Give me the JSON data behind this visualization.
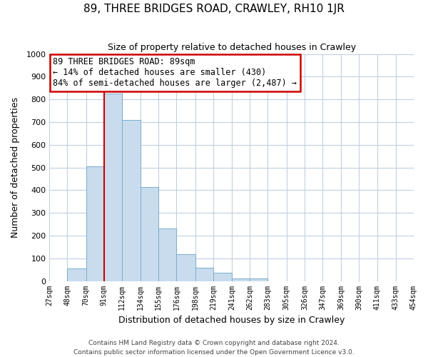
{
  "title": "89, THREE BRIDGES ROAD, CRAWLEY, RH10 1JR",
  "subtitle": "Size of property relative to detached houses in Crawley",
  "xlabel": "Distribution of detached houses by size in Crawley",
  "ylabel": "Number of detached properties",
  "bar_edges": [
    27,
    48,
    70,
    91,
    112,
    134,
    155,
    176,
    198,
    219,
    241,
    262,
    283,
    305,
    326,
    347,
    369,
    390,
    411,
    433,
    454
  ],
  "bar_heights": [
    0,
    55,
    505,
    825,
    710,
    415,
    230,
    118,
    57,
    35,
    12,
    12,
    0,
    0,
    0,
    0,
    0,
    0,
    0,
    0
  ],
  "bar_color": "#c8dced",
  "bar_edge_color": "#7aaecb",
  "vline_x": 91,
  "vline_color": "#cc0000",
  "ylim": [
    0,
    1000
  ],
  "yticks": [
    0,
    100,
    200,
    300,
    400,
    500,
    600,
    700,
    800,
    900,
    1000
  ],
  "annotation_box_text": "89 THREE BRIDGES ROAD: 89sqm\n← 14% of detached houses are smaller (430)\n84% of semi-detached houses are larger (2,487) →",
  "annotation_box_color": "#ffffff",
  "annotation_box_edge_color": "#cc0000",
  "footer_lines": "Contains HM Land Registry data © Crown copyright and database right 2024.\nContains public sector information licensed under the Open Government Licence v3.0.",
  "tick_labels": [
    "27sqm",
    "48sqm",
    "70sqm",
    "91sqm",
    "112sqm",
    "134sqm",
    "155sqm",
    "176sqm",
    "198sqm",
    "219sqm",
    "241sqm",
    "262sqm",
    "283sqm",
    "305sqm",
    "326sqm",
    "347sqm",
    "369sqm",
    "390sqm",
    "411sqm",
    "433sqm",
    "454sqm"
  ],
  "background_color": "#ffffff",
  "grid_color": "#c0d0e0",
  "title_fontsize": 11,
  "subtitle_fontsize": 9,
  "xlabel_fontsize": 9,
  "ylabel_fontsize": 9,
  "annotation_fontsize": 8.5,
  "footer_fontsize": 6.5,
  "ytick_fontsize": 8,
  "xtick_fontsize": 7
}
